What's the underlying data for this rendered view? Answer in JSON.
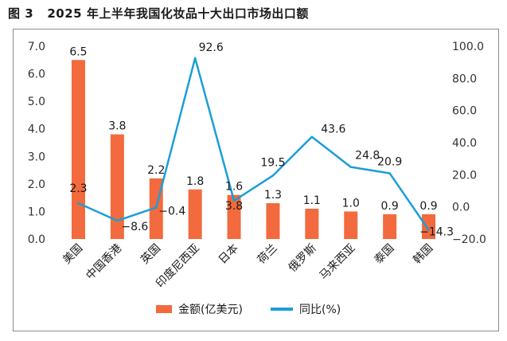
{
  "figure": {
    "number": "图 3",
    "title": "2025 年上半年我国化妆品十大出口市场出口额"
  },
  "chart_data": {
    "type": "bar+line",
    "categories": [
      "美国",
      "中国香港",
      "英国",
      "印度尼西亚",
      "日本",
      "荷兰",
      "俄罗斯",
      "马来西亚",
      "泰国",
      "韩国"
    ],
    "series": [
      {
        "name": "金额(亿美元)",
        "type": "bar",
        "axis": "left",
        "color": "#f26a3d",
        "values": [
          6.5,
          3.8,
          2.2,
          1.8,
          1.6,
          1.3,
          1.1,
          1.0,
          0.9,
          0.9
        ],
        "labels": [
          "6.5",
          "3.8",
          "2.2",
          "1.8",
          "1.6",
          "1.3",
          "1.1",
          "1.0",
          "0.9",
          "0.9"
        ]
      },
      {
        "name": "同比(%)",
        "type": "line",
        "axis": "right",
        "color": "#1b9ed8",
        "values": [
          2.3,
          -8.6,
          -0.4,
          92.6,
          3.8,
          19.5,
          43.6,
          24.8,
          20.9,
          -14.3
        ],
        "labels": [
          "2.3",
          "−8.6",
          "−0.4",
          "92.6",
          "3.8",
          "19.5",
          "43.6",
          "24.8",
          "20.9",
          "−14.3"
        ]
      }
    ],
    "y_left": {
      "min": 0,
      "max": 7,
      "ticks": [
        "0.0",
        "1.0",
        "2.0",
        "3.0",
        "4.0",
        "5.0",
        "6.0",
        "7.0"
      ]
    },
    "y_right": {
      "min": -20,
      "max": 100,
      "ticks": [
        "−20.0",
        "0.0",
        "20.0",
        "40.0",
        "60.0",
        "80.0",
        "100.0"
      ]
    },
    "grid": false,
    "legend": "bottom"
  }
}
